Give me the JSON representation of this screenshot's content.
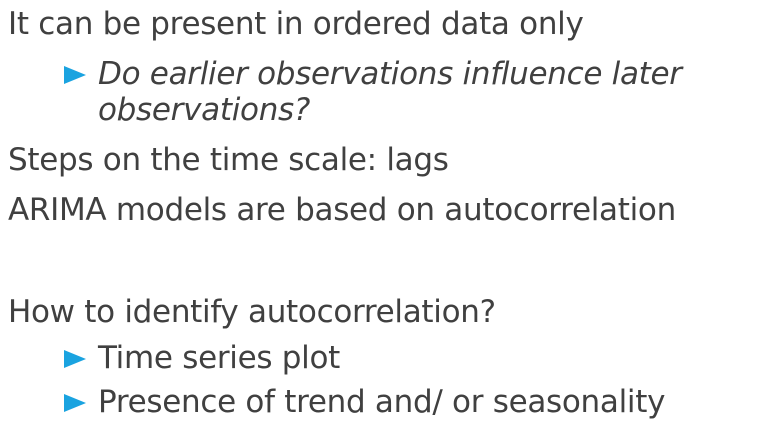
{
  "slide": {
    "line1": "It can be present in ordered data only",
    "sub1": {
      "icon": "triangle-right-icon",
      "text_line1": "Do earlier observations influence later",
      "text_line2": "observations?"
    },
    "line2": "Steps on the time scale: lags",
    "line3": "ARIMA models are based on autocorrelation",
    "line4": "How to identify autocorrelation?",
    "sub2": {
      "icon": "triangle-right-icon",
      "text": "Time series plot"
    },
    "sub3": {
      "icon": "triangle-right-icon",
      "text": "Presence of trend and/ or seasonality"
    },
    "accent_color": "#1aa3e0",
    "text_color": "#404040"
  }
}
